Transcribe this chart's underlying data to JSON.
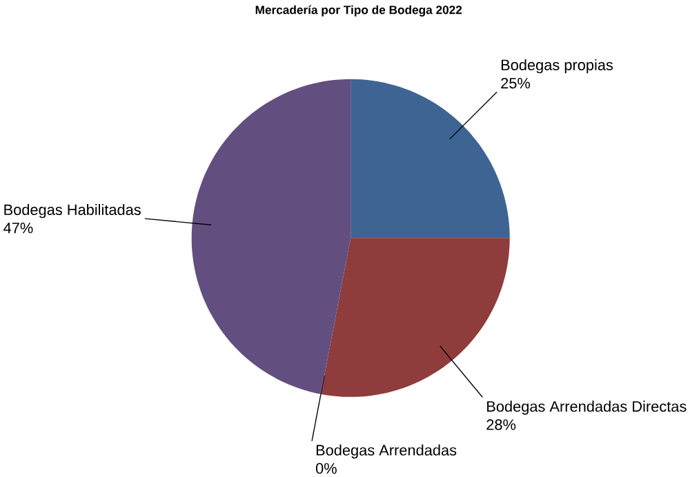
{
  "chart_data": {
    "type": "pie",
    "title": "Mercadería por Tipo de Bodega 2022",
    "categories": [
      "Bodegas propias",
      "Bodegas Arrendadas Directas",
      "Bodegas Arrendadas",
      "Bodegas Habilitadas"
    ],
    "values": [
      25,
      28,
      0,
      47
    ],
    "value_labels": [
      "25%",
      "28%",
      "0%",
      "47%"
    ],
    "colors": [
      "#3e6493",
      "#8e3c3c",
      "#7a9440",
      "#634f7f"
    ]
  }
}
